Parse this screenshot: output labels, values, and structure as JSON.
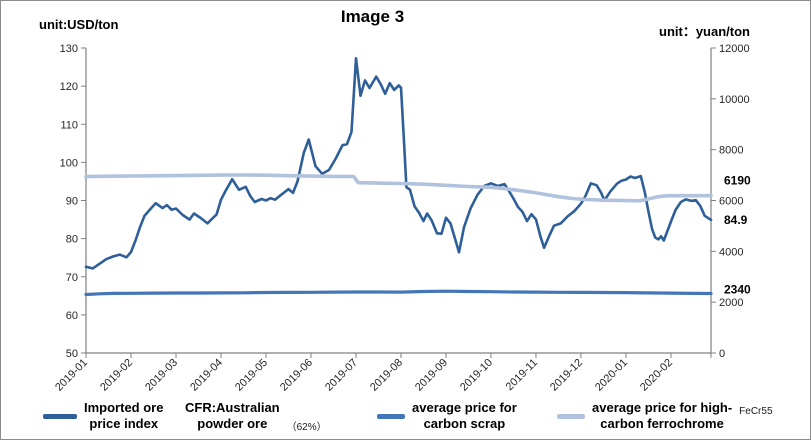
{
  "header": {
    "title": "Image 3",
    "unit_left": "unit:USD/ton",
    "unit_right": "unit：yuan/ton"
  },
  "chart_data": {
    "type": "line",
    "title": "Image 3",
    "grid": false,
    "legend_position": "bottom",
    "left_axis": {
      "label": "unit:USD/ton",
      "min": 50,
      "max": 130,
      "tick_step": 10,
      "ticks": [
        50,
        60,
        70,
        80,
        90,
        100,
        110,
        120,
        130
      ]
    },
    "right_axis": {
      "label": "unit：yuan/ton",
      "min": 0,
      "max": 12000,
      "tick_step": 2000,
      "ticks": [
        0,
        2000,
        4000,
        6000,
        8000,
        10000,
        12000
      ]
    },
    "x_axis": {
      "xlim": [
        0,
        13.89
      ],
      "tick_labels": [
        "2019-01",
        "2019-02",
        "2019-03",
        "2019-04",
        "2019-05",
        "2019-06",
        "2019-07",
        "2019-08",
        "2019-09",
        "2019-10",
        "2019-11",
        "2019-12",
        "2020-01",
        "2020-02"
      ]
    },
    "series": [
      {
        "name": "Imported ore price index CFR:Australian powder ore（62%）",
        "axis": "left",
        "color": "#2F5F99",
        "width": 2.6,
        "x": [
          0,
          0.15,
          0.3,
          0.45,
          0.6,
          0.75,
          0.9,
          1.0,
          1.1,
          1.2,
          1.3,
          1.45,
          1.55,
          1.7,
          1.8,
          1.9,
          2.0,
          2.15,
          2.3,
          2.4,
          2.55,
          2.7,
          2.8,
          2.9,
          3.0,
          3.1,
          3.25,
          3.4,
          3.55,
          3.65,
          3.75,
          3.9,
          4.0,
          4.1,
          4.2,
          4.35,
          4.5,
          4.6,
          4.7,
          4.84,
          4.95,
          5.1,
          5.25,
          5.4,
          5.55,
          5.7,
          5.8,
          5.9,
          6.0,
          6.1,
          6.2,
          6.3,
          6.45,
          6.55,
          6.65,
          6.75,
          6.85,
          6.95,
          7.0,
          7.07,
          7.12,
          7.2,
          7.3,
          7.4,
          7.5,
          7.58,
          7.68,
          7.8,
          7.9,
          8.0,
          8.1,
          8.2,
          8.29,
          8.4,
          8.55,
          8.7,
          8.85,
          9.0,
          9.15,
          9.3,
          9.4,
          9.5,
          9.6,
          9.7,
          9.8,
          9.9,
          10.0,
          10.1,
          10.18,
          10.3,
          10.4,
          10.55,
          10.7,
          10.85,
          11.0,
          11.1,
          11.22,
          11.35,
          11.45,
          11.52,
          11.65,
          11.8,
          11.9,
          12.0,
          12.1,
          12.2,
          12.33,
          12.42,
          12.5,
          12.58,
          12.65,
          12.72,
          12.78,
          12.84,
          12.92,
          13.0,
          13.1,
          13.22,
          13.33,
          13.45,
          13.55,
          13.65,
          13.75,
          13.89
        ],
        "values": [
          72.6,
          72.2,
          73.4,
          74.6,
          75.3,
          75.8,
          75.1,
          76.5,
          79.5,
          83.0,
          86.0,
          88.0,
          89.3,
          88.0,
          88.8,
          87.6,
          87.9,
          86.2,
          85.0,
          86.6,
          85.4,
          84.0,
          85.2,
          86.3,
          90.2,
          92.5,
          95.6,
          92.8,
          93.6,
          91.2,
          89.6,
          90.4,
          90.0,
          90.6,
          90.2,
          91.6,
          93.0,
          92.0,
          95.0,
          102.5,
          106.0,
          99.0,
          97.0,
          98.0,
          101.0,
          104.5,
          104.8,
          108.0,
          127.3,
          117.5,
          121.5,
          119.5,
          122.5,
          120.5,
          118.0,
          120.8,
          119.0,
          120.2,
          119.6,
          105.0,
          93.5,
          92.8,
          88.5,
          86.8,
          84.6,
          86.6,
          84.8,
          81.4,
          81.3,
          85.5,
          84.0,
          80.0,
          76.4,
          83.0,
          88.0,
          91.5,
          93.8,
          94.5,
          93.8,
          94.3,
          92.5,
          90.5,
          88.3,
          87.0,
          84.6,
          86.4,
          85.0,
          80.5,
          77.6,
          80.9,
          83.4,
          84.0,
          85.8,
          87.2,
          89.2,
          91.2,
          94.5,
          94.0,
          92.0,
          90.0,
          92.3,
          94.4,
          95.2,
          95.5,
          96.3,
          95.9,
          96.4,
          92.0,
          87.0,
          82.5,
          80.3,
          79.8,
          80.6,
          79.5,
          82.0,
          84.5,
          87.5,
          89.6,
          90.3,
          89.9,
          90.1,
          88.6,
          86.0,
          84.9
        ],
        "last_value_label": "84.9"
      },
      {
        "name": "average price for carbon scrap",
        "axis": "right",
        "color": "#4376B8",
        "width": 3.2,
        "x": [
          0,
          0.3,
          0.6,
          1.0,
          1.5,
          2.0,
          2.5,
          3.0,
          3.5,
          4.0,
          4.5,
          5.0,
          5.5,
          6.0,
          6.5,
          7.0,
          7.5,
          8.0,
          8.5,
          9.0,
          9.5,
          10.0,
          10.5,
          11.0,
          11.5,
          12.0,
          12.5,
          13.0,
          13.5,
          13.89
        ],
        "values": [
          2300,
          2330,
          2345,
          2350,
          2355,
          2360,
          2360,
          2365,
          2370,
          2380,
          2385,
          2390,
          2395,
          2400,
          2400,
          2395,
          2420,
          2430,
          2420,
          2410,
          2400,
          2395,
          2390,
          2385,
          2380,
          2375,
          2365,
          2355,
          2345,
          2340
        ],
        "last_value_label": "2340"
      },
      {
        "name": "average price for high-carbon ferrochrome FeCr55",
        "axis": "right",
        "color": "#B1C2DE",
        "width": 3.6,
        "x": [
          0,
          0.5,
          1.0,
          1.5,
          2.0,
          2.5,
          3.0,
          3.5,
          4.0,
          4.5,
          5.0,
          5.5,
          5.95,
          6.05,
          6.5,
          7.0,
          7.5,
          8.0,
          8.5,
          9.0,
          9.3,
          9.6,
          9.9,
          10.2,
          10.5,
          10.8,
          11.1,
          11.5,
          12.0,
          12.3,
          12.5,
          12.7,
          12.9,
          13.2,
          13.89
        ],
        "values": [
          6940,
          6955,
          6965,
          6970,
          6980,
          6990,
          7000,
          7005,
          6995,
          6975,
          6960,
          6950,
          6945,
          6700,
          6685,
          6670,
          6640,
          6600,
          6550,
          6520,
          6470,
          6400,
          6330,
          6240,
          6150,
          6080,
          6040,
          6010,
          5995,
          5990,
          6060,
          6150,
          6185,
          6190,
          6190
        ],
        "last_value_label": "6190"
      }
    ],
    "annotations": [
      {
        "text": "6190",
        "axis": "right",
        "value": 6190,
        "dy": -11
      },
      {
        "text": "84.9",
        "axis": "left",
        "value": 84.9,
        "dy": 4
      },
      {
        "text": "2340",
        "axis": "right",
        "value": 2340,
        "dy": 0
      }
    ]
  },
  "legend": {
    "items": [
      {
        "color": "#2F5F99",
        "line1": "Imported ore",
        "line2": "price index",
        "suffix": ""
      },
      {
        "color": null,
        "line1": "CFR:Australian",
        "line2": "powder ore",
        "suffix": "（62%）"
      },
      {
        "color": "#4376B8",
        "line1": "average price for",
        "line2": "carbon scrap",
        "suffix": ""
      },
      {
        "color": "#B1C2DE",
        "line1": "average price for high-",
        "line2": "carbon ferrochrome",
        "suffix": "FeCr55"
      }
    ]
  },
  "colors": {
    "axis_line": "#808080",
    "tick_text": "#262626",
    "frame_border": "#8c8c8c"
  }
}
